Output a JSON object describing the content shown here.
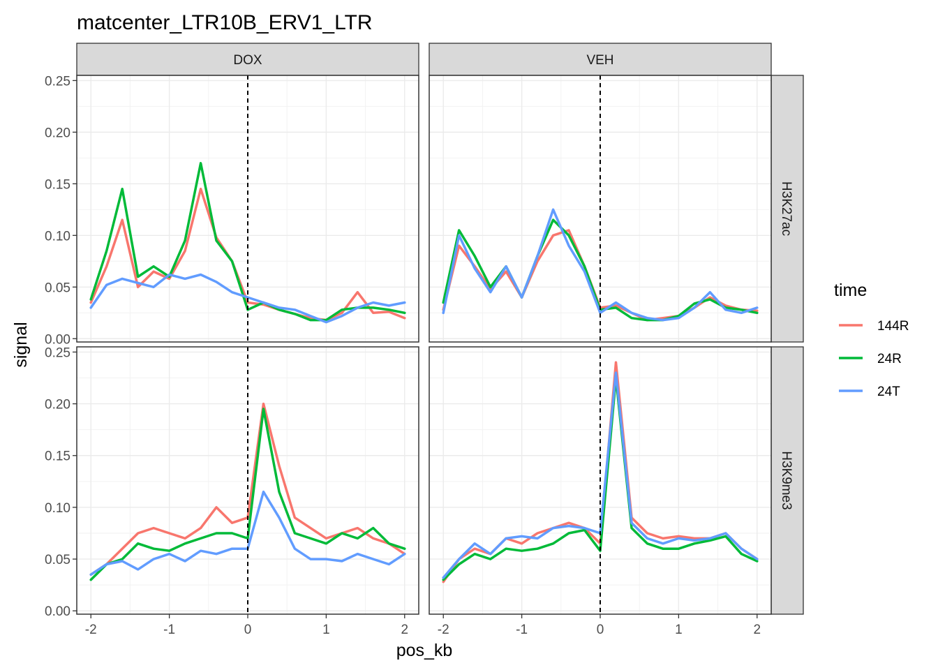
{
  "chart_data": {
    "type": "line",
    "title": "matcenter_LTR10B_ERV1_LTR",
    "xlabel": "pos_kb",
    "ylabel": "signal",
    "xlim": [
      -2,
      2
    ],
    "ylim": [
      0,
      0.25
    ],
    "x_ticks": [
      "-2",
      "-1",
      "0",
      "1",
      "2"
    ],
    "y_ticks": [
      "0.00",
      "0.05",
      "0.10",
      "0.15",
      "0.20",
      "0.25"
    ],
    "grid": true,
    "vline_x": 0,
    "facet_columns": [
      "DOX",
      "VEH"
    ],
    "facet_rows": [
      "H3K27ac",
      "H3K9me3"
    ],
    "legend": {
      "title": "time",
      "position": "right"
    },
    "series_colors": {
      "144R": "#F8766D",
      "24R": "#00BA38",
      "24T": "#619CFF"
    },
    "x": [
      -2.0,
      -1.8,
      -1.6,
      -1.4,
      -1.2,
      -1.0,
      -0.8,
      -0.6,
      -0.4,
      -0.2,
      0.0,
      0.2,
      0.4,
      0.6,
      0.8,
      1.0,
      1.2,
      1.4,
      1.6,
      1.8,
      2.0
    ],
    "panels": [
      {
        "column": "DOX",
        "row": "H3K27ac",
        "series": [
          {
            "name": "144R",
            "values": [
              0.035,
              0.07,
              0.115,
              0.05,
              0.065,
              0.058,
              0.085,
              0.145,
              0.098,
              0.075,
              0.035,
              0.033,
              0.028,
              0.024,
              0.02,
              0.018,
              0.025,
              0.045,
              0.025,
              0.026,
              0.02
            ]
          },
          {
            "name": "24R",
            "values": [
              0.038,
              0.085,
              0.145,
              0.06,
              0.07,
              0.06,
              0.095,
              0.17,
              0.095,
              0.075,
              0.028,
              0.035,
              0.028,
              0.024,
              0.018,
              0.018,
              0.028,
              0.03,
              0.03,
              0.028,
              0.025
            ]
          },
          {
            "name": "24T",
            "values": [
              0.03,
              0.052,
              0.058,
              0.054,
              0.05,
              0.062,
              0.058,
              0.062,
              0.055,
              0.045,
              0.04,
              0.035,
              0.03,
              0.028,
              0.022,
              0.016,
              0.022,
              0.03,
              0.035,
              0.032,
              0.035
            ]
          }
        ]
      },
      {
        "column": "VEH",
        "row": "H3K27ac",
        "series": [
          {
            "name": "144R",
            "values": [
              0.028,
              0.09,
              0.07,
              0.048,
              0.065,
              0.04,
              0.075,
              0.1,
              0.105,
              0.07,
              0.03,
              0.032,
              0.025,
              0.018,
              0.02,
              0.022,
              0.03,
              0.04,
              0.032,
              0.028,
              0.027
            ]
          },
          {
            "name": "24R",
            "values": [
              0.035,
              0.105,
              0.08,
              0.05,
              0.07,
              0.04,
              0.08,
              0.115,
              0.1,
              0.07,
              0.028,
              0.03,
              0.02,
              0.018,
              0.018,
              0.022,
              0.034,
              0.038,
              0.03,
              0.028,
              0.025
            ]
          },
          {
            "name": "24T",
            "values": [
              0.025,
              0.1,
              0.068,
              0.045,
              0.07,
              0.04,
              0.08,
              0.125,
              0.09,
              0.065,
              0.025,
              0.035,
              0.025,
              0.02,
              0.018,
              0.02,
              0.03,
              0.045,
              0.028,
              0.025,
              0.03
            ]
          }
        ]
      },
      {
        "column": "DOX",
        "row": "H3K9me3",
        "series": [
          {
            "name": "144R",
            "values": [
              0.035,
              0.045,
              0.06,
              0.075,
              0.08,
              0.075,
              0.07,
              0.08,
              0.1,
              0.085,
              0.09,
              0.2,
              0.14,
              0.09,
              0.08,
              0.07,
              0.075,
              0.08,
              0.07,
              0.065,
              0.055
            ]
          },
          {
            "name": "24R",
            "values": [
              0.03,
              0.045,
              0.05,
              0.065,
              0.06,
              0.058,
              0.065,
              0.07,
              0.075,
              0.075,
              0.07,
              0.195,
              0.115,
              0.075,
              0.07,
              0.065,
              0.075,
              0.07,
              0.08,
              0.065,
              0.06
            ]
          },
          {
            "name": "24T",
            "values": [
              0.035,
              0.045,
              0.048,
              0.04,
              0.05,
              0.055,
              0.048,
              0.058,
              0.055,
              0.06,
              0.06,
              0.115,
              0.09,
              0.06,
              0.05,
              0.05,
              0.048,
              0.055,
              0.05,
              0.045,
              0.055
            ]
          }
        ]
      },
      {
        "column": "VEH",
        "row": "H3K9me3",
        "series": [
          {
            "name": "144R",
            "values": [
              0.028,
              0.05,
              0.06,
              0.055,
              0.07,
              0.065,
              0.075,
              0.08,
              0.085,
              0.08,
              0.065,
              0.24,
              0.09,
              0.075,
              0.07,
              0.072,
              0.07,
              0.07,
              0.075,
              0.06,
              0.05
            ]
          },
          {
            "name": "24R",
            "values": [
              0.03,
              0.045,
              0.055,
              0.05,
              0.06,
              0.058,
              0.06,
              0.065,
              0.075,
              0.078,
              0.058,
              0.225,
              0.08,
              0.065,
              0.06,
              0.06,
              0.065,
              0.068,
              0.072,
              0.055,
              0.048
            ]
          },
          {
            "name": "24T",
            "values": [
              0.032,
              0.05,
              0.065,
              0.055,
              0.07,
              0.072,
              0.07,
              0.08,
              0.082,
              0.08,
              0.075,
              0.23,
              0.085,
              0.07,
              0.065,
              0.07,
              0.068,
              0.07,
              0.075,
              0.06,
              0.05
            ]
          }
        ]
      }
    ]
  }
}
